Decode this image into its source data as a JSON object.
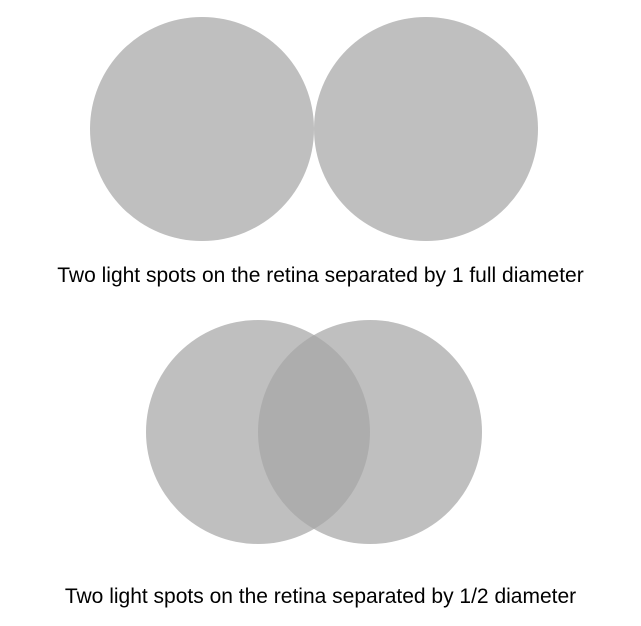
{
  "panels": [
    {
      "caption": "Two light spots on the retina separated by 1 full diameter",
      "separation_diameters": 1
    },
    {
      "caption": "Two light spots on the retina separated by 1/2 diameter",
      "separation_diameters": 0.5
    }
  ],
  "colors": {
    "spot": "#a6a6a6",
    "spot_opacity": 0.72,
    "background": "#ffffff"
  }
}
